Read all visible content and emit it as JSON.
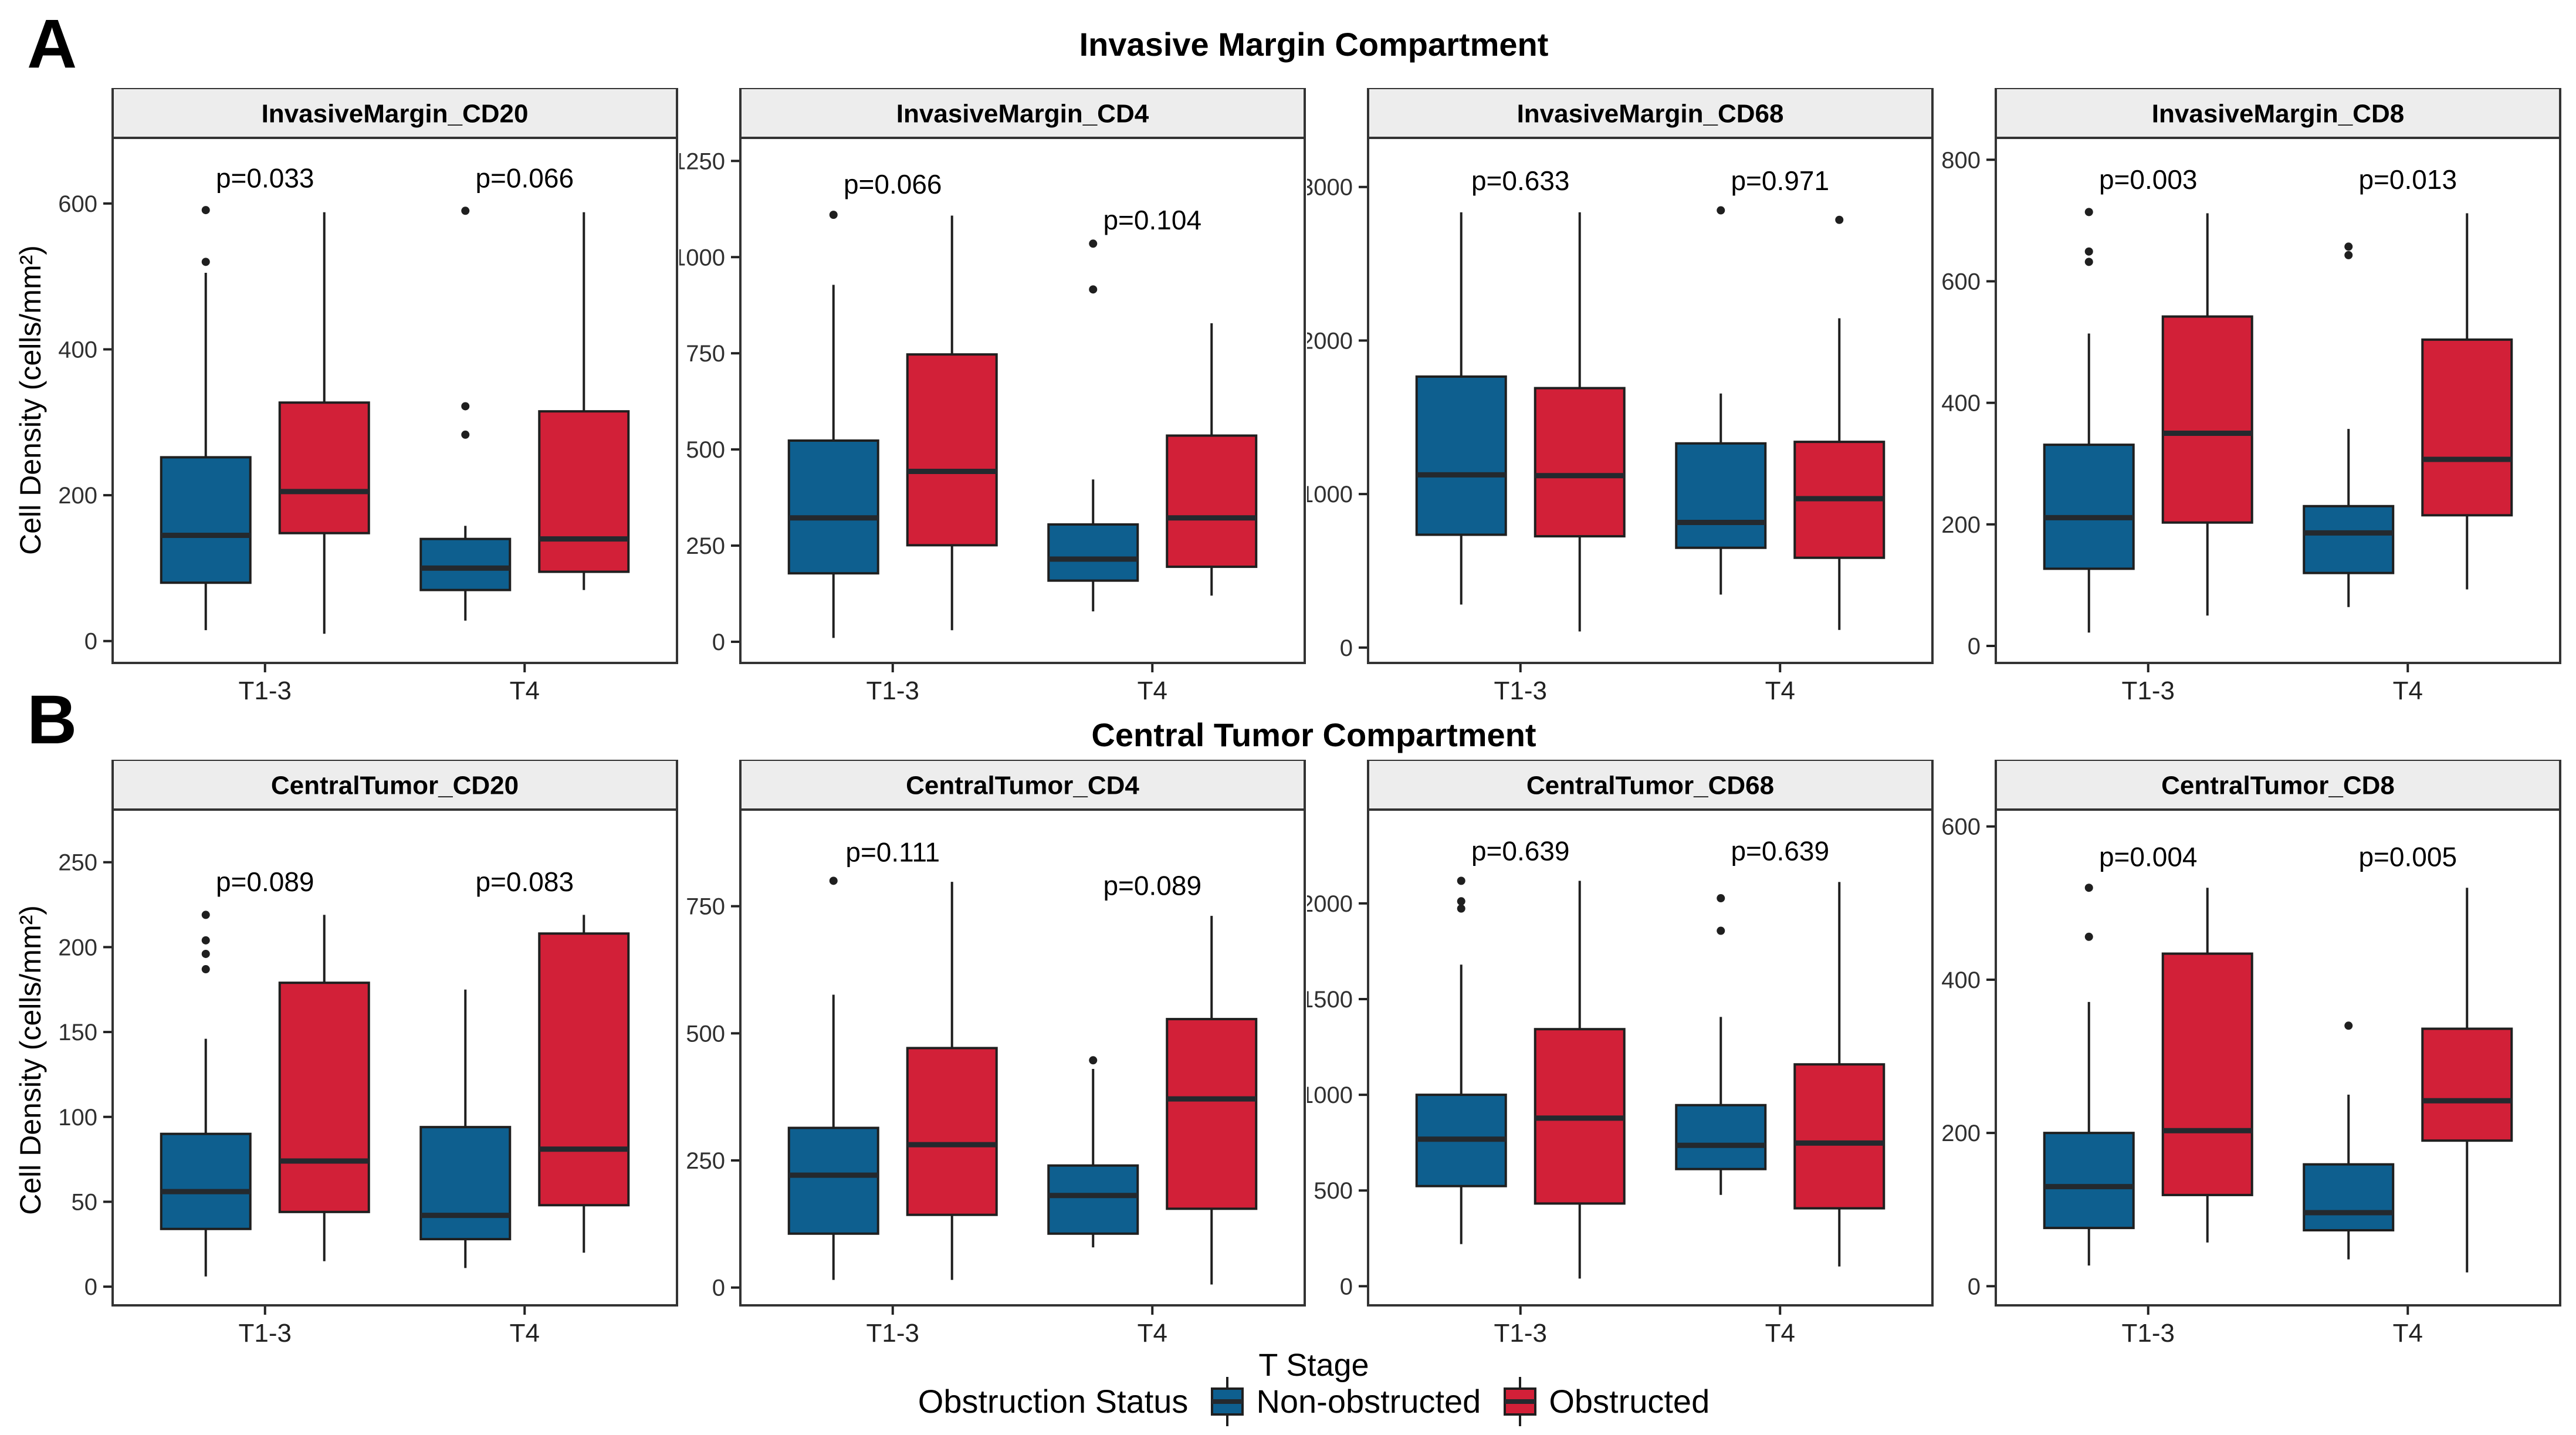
{
  "figure": {
    "panel_a_label": "A",
    "panel_b_label": "B",
    "row_a_title": "Invasive Margin Compartment",
    "row_b_title": "Central Tumor Compartment",
    "y_axis_label": "Cell Density (cells/mm²)",
    "x_axis_label": "T Stage",
    "legend": {
      "title": "Obstruction Status",
      "items": [
        {
          "label": "Non-obstructed",
          "color": "#0E5F8F"
        },
        {
          "label": "Obstructed",
          "color": "#D22038"
        }
      ]
    },
    "style": {
      "strip_bg": "#EDEDED",
      "panel_border": "#333333",
      "box_stroke": "#1F1F1F",
      "median_color": "#24292E",
      "tick_text": "#303030"
    }
  },
  "chart_data": [
    {
      "type": "box",
      "row": "A",
      "facet": "InvasiveMargin_CD20",
      "ylim": [
        -30,
        690
      ],
      "yticks": [
        0,
        200,
        400,
        600
      ],
      "categories": [
        {
          "label": "T1-3",
          "p_label": "p=0.033",
          "p_y": 622,
          "boxes": [
            {
              "group": "Non-obstructed",
              "whislo": 15,
              "q1": 80,
              "med": 145,
              "q3": 252,
              "whishi": 505,
              "outliers": [
                520,
                591
              ]
            },
            {
              "group": "Obstructed",
              "whislo": 10,
              "q1": 148,
              "med": 205,
              "q3": 327,
              "whishi": 588,
              "outliers": []
            }
          ]
        },
        {
          "label": "T4",
          "p_label": "p=0.066",
          "p_y": 622,
          "boxes": [
            {
              "group": "Non-obstructed",
              "whislo": 28,
              "q1": 70,
              "med": 100,
              "q3": 140,
              "whishi": 158,
              "outliers": [
                283,
                322,
                590
              ]
            },
            {
              "group": "Obstructed",
              "whislo": 70,
              "q1": 95,
              "med": 140,
              "q3": 315,
              "whishi": 588,
              "outliers": []
            }
          ]
        }
      ]
    },
    {
      "type": "box",
      "row": "A",
      "facet": "InvasiveMargin_CD4",
      "ylim": [
        -55,
        1310
      ],
      "yticks": [
        0,
        250,
        500,
        750,
        1000,
        1250
      ],
      "categories": [
        {
          "label": "T1-3",
          "p_label": "p=0.066",
          "p_y": 1165,
          "boxes": [
            {
              "group": "Non-obstructed",
              "whislo": 10,
              "q1": 178,
              "med": 322,
              "q3": 523,
              "whishi": 928,
              "outliers": [
                1110
              ]
            },
            {
              "group": "Obstructed",
              "whislo": 30,
              "q1": 251,
              "med": 443,
              "q3": 747,
              "whishi": 1108,
              "outliers": []
            }
          ]
        },
        {
          "label": "T4",
          "p_label": "p=0.104",
          "p_y": 1072,
          "boxes": [
            {
              "group": "Non-obstructed",
              "whislo": 79,
              "q1": 159,
              "med": 215,
              "q3": 305,
              "whishi": 422,
              "outliers": [
                916,
                1035
              ]
            },
            {
              "group": "Obstructed",
              "whislo": 120,
              "q1": 195,
              "med": 322,
              "q3": 536,
              "whishi": 828,
              "outliers": []
            }
          ]
        }
      ]
    },
    {
      "type": "box",
      "row": "A",
      "facet": "InvasiveMargin_CD68",
      "ylim": [
        -100,
        3320
      ],
      "yticks": [
        0,
        1000,
        2000,
        3000
      ],
      "categories": [
        {
          "label": "T1-3",
          "p_label": "p=0.633",
          "p_y": 2980,
          "boxes": [
            {
              "group": "Non-obstructed",
              "whislo": 280,
              "q1": 735,
              "med": 1125,
              "q3": 1765,
              "whishi": 2835,
              "outliers": []
            },
            {
              "group": "Obstructed",
              "whislo": 105,
              "q1": 725,
              "med": 1120,
              "q3": 1690,
              "whishi": 2835,
              "outliers": []
            }
          ]
        },
        {
          "label": "T4",
          "p_label": "p=0.971",
          "p_y": 2980,
          "boxes": [
            {
              "group": "Non-obstructed",
              "whislo": 345,
              "q1": 650,
              "med": 815,
              "q3": 1330,
              "whishi": 1655,
              "outliers": [
                2848
              ]
            },
            {
              "group": "Obstructed",
              "whislo": 115,
              "q1": 585,
              "med": 970,
              "q3": 1340,
              "whishi": 2145,
              "outliers": [
                2786
              ]
            }
          ]
        }
      ]
    },
    {
      "type": "box",
      "row": "A",
      "facet": "InvasiveMargin_CD8",
      "ylim": [
        -28,
        836
      ],
      "yticks": [
        0,
        200,
        400,
        600,
        800
      ],
      "categories": [
        {
          "label": "T1-3",
          "p_label": "p=0.003",
          "p_y": 752,
          "boxes": [
            {
              "group": "Non-obstructed",
              "whislo": 22,
              "q1": 127,
              "med": 211,
              "q3": 331,
              "whishi": 514,
              "outliers": [
                632,
                649,
                714
              ]
            },
            {
              "group": "Obstructed",
              "whislo": 50,
              "q1": 203,
              "med": 350,
              "q3": 542,
              "whishi": 712,
              "outliers": []
            }
          ]
        },
        {
          "label": "T4",
          "p_label": "p=0.013",
          "p_y": 752,
          "boxes": [
            {
              "group": "Non-obstructed",
              "whislo": 64,
              "q1": 120,
              "med": 186,
              "q3": 230,
              "whishi": 357,
              "outliers": [
                643,
                657
              ]
            },
            {
              "group": "Obstructed",
              "whislo": 93,
              "q1": 215,
              "med": 307,
              "q3": 504,
              "whishi": 712,
              "outliers": []
            }
          ]
        }
      ]
    },
    {
      "type": "box",
      "row": "B",
      "facet": "CentralTumor_CD20",
      "ylim": [
        -11,
        281
      ],
      "yticks": [
        0,
        50,
        100,
        150,
        200,
        250
      ],
      "categories": [
        {
          "label": "T1-3",
          "p_label": "p=0.089",
          "p_y": 233,
          "boxes": [
            {
              "group": "Non-obstructed",
              "whislo": 6,
              "q1": 34,
              "med": 56,
              "q3": 90,
              "whishi": 146,
              "outliers": [
                187,
                196,
                204,
                219
              ]
            },
            {
              "group": "Obstructed",
              "whislo": 15,
              "q1": 44,
              "med": 74,
              "q3": 179,
              "whishi": 219,
              "outliers": []
            }
          ]
        },
        {
          "label": "T4",
          "p_label": "p=0.083",
          "p_y": 233,
          "boxes": [
            {
              "group": "Non-obstructed",
              "whislo": 11,
              "q1": 28,
              "med": 42,
              "q3": 94,
              "whishi": 175,
              "outliers": []
            },
            {
              "group": "Obstructed",
              "whislo": 20,
              "q1": 48,
              "med": 81,
              "q3": 208,
              "whishi": 219,
              "outliers": []
            }
          ]
        }
      ]
    },
    {
      "type": "box",
      "row": "B",
      "facet": "CentralTumor_CD4",
      "ylim": [
        -35,
        940
      ],
      "yticks": [
        0,
        250,
        500,
        750
      ],
      "categories": [
        {
          "label": "T1-3",
          "p_label": "p=0.111",
          "p_y": 838,
          "boxes": [
            {
              "group": "Non-obstructed",
              "whislo": 15,
              "q1": 106,
              "med": 221,
              "q3": 314,
              "whishi": 576,
              "outliers": [
                800
              ]
            },
            {
              "group": "Obstructed",
              "whislo": 15,
              "q1": 143,
              "med": 281,
              "q3": 471,
              "whishi": 798,
              "outliers": []
            }
          ]
        },
        {
          "label": "T4",
          "p_label": "p=0.089",
          "p_y": 772,
          "boxes": [
            {
              "group": "Non-obstructed",
              "whislo": 79,
              "q1": 106,
              "med": 181,
              "q3": 240,
              "whishi": 430,
              "outliers": [
                447
              ]
            },
            {
              "group": "Obstructed",
              "whislo": 6,
              "q1": 155,
              "med": 371,
              "q3": 528,
              "whishi": 731,
              "outliers": []
            }
          ]
        }
      ]
    },
    {
      "type": "box",
      "row": "B",
      "facet": "CentralTumor_CD68",
      "ylim": [
        -100,
        2490
      ],
      "yticks": [
        0,
        500,
        1000,
        1500,
        2000
      ],
      "categories": [
        {
          "label": "T1-3",
          "p_label": "p=0.639",
          "p_y": 2225,
          "boxes": [
            {
              "group": "Non-obstructed",
              "whislo": 220,
              "q1": 523,
              "med": 768,
              "q3": 1000,
              "whishi": 1680,
              "outliers": [
                1973,
                2011,
                2118
              ]
            },
            {
              "group": "Obstructed",
              "whislo": 40,
              "q1": 432,
              "med": 878,
              "q3": 1343,
              "whishi": 2118,
              "outliers": []
            }
          ]
        },
        {
          "label": "T4",
          "p_label": "p=0.639",
          "p_y": 2225,
          "boxes": [
            {
              "group": "Non-obstructed",
              "whislo": 477,
              "q1": 612,
              "med": 736,
              "q3": 946,
              "whishi": 1407,
              "outliers": [
                1857,
                2027
              ]
            },
            {
              "group": "Obstructed",
              "whislo": 103,
              "q1": 407,
              "med": 748,
              "q3": 1159,
              "whishi": 2112,
              "outliers": []
            }
          ]
        }
      ]
    },
    {
      "type": "box",
      "row": "B",
      "facet": "CentralTumor_CD8",
      "ylim": [
        -25,
        622
      ],
      "yticks": [
        0,
        200,
        400,
        600
      ],
      "categories": [
        {
          "label": "T1-3",
          "p_label": "p=0.004",
          "p_y": 548,
          "boxes": [
            {
              "group": "Non-obstructed",
              "whislo": 27,
              "q1": 76,
              "med": 130,
              "q3": 200,
              "whishi": 371,
              "outliers": [
                456,
                520
              ]
            },
            {
              "group": "Obstructed",
              "whislo": 57,
              "q1": 119,
              "med": 203,
              "q3": 434,
              "whishi": 520,
              "outliers": []
            }
          ]
        },
        {
          "label": "T4",
          "p_label": "p=0.005",
          "p_y": 548,
          "boxes": [
            {
              "group": "Non-obstructed",
              "whislo": 35,
              "q1": 73,
              "med": 96,
              "q3": 159,
              "whishi": 250,
              "outliers": [
                340
              ]
            },
            {
              "group": "Obstructed",
              "whislo": 18,
              "q1": 190,
              "med": 242,
              "q3": 336,
              "whishi": 520,
              "outliers": []
            }
          ]
        }
      ]
    }
  ]
}
